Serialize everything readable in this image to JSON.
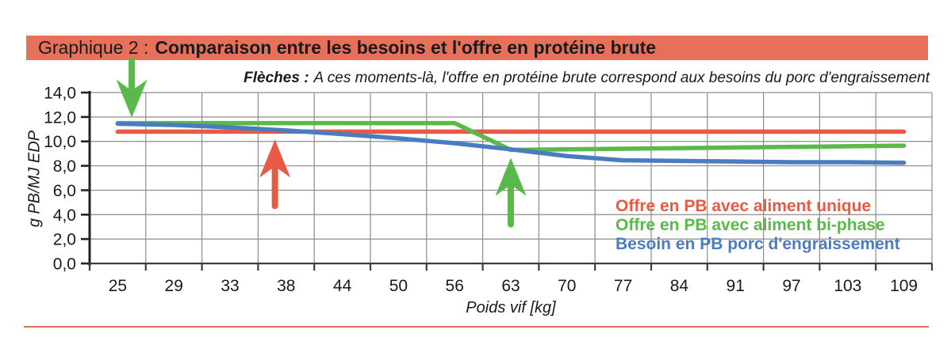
{
  "header": {
    "label": "Graphique 2 :",
    "title": "Comparaison entre les besoins et l'offre en protéine brute",
    "bar_color": "#e7705b"
  },
  "subtitle": {
    "lead": "Flèches :",
    "text": "A ces moments-là, l'offre en protéine brute correspond aux besoins du porc d'engraissement"
  },
  "chart_data": {
    "type": "line",
    "categories": [
      25,
      29,
      33,
      38,
      44,
      50,
      56,
      63,
      70,
      77,
      84,
      91,
      97,
      103,
      109
    ],
    "series": [
      {
        "name": "Offre en PB avec aliment unique",
        "color": "#e85a43",
        "values": [
          10.8,
          10.8,
          10.8,
          10.8,
          10.8,
          10.8,
          10.8,
          10.8,
          10.8,
          10.8,
          10.8,
          10.8,
          10.8,
          10.8,
          10.8
        ]
      },
      {
        "name": "Offre en PB avec aliment bi-phase",
        "color": "#5ab948",
        "values": [
          11.5,
          11.5,
          11.5,
          11.5,
          11.5,
          11.5,
          11.5,
          9.3,
          9.35,
          9.4,
          9.45,
          9.5,
          9.55,
          9.6,
          9.65
        ]
      },
      {
        "name": "Besoin en PB porc d'engraissement",
        "color": "#4a7cc0",
        "values": [
          11.45,
          11.35,
          11.15,
          10.9,
          10.6,
          10.25,
          9.85,
          9.35,
          8.8,
          8.45,
          8.4,
          8.35,
          8.3,
          8.3,
          8.25
        ]
      }
    ],
    "title": "Comparaison entre les besoins et l'offre en protéine brute",
    "xlabel": "Poids vif [kg]",
    "ylabel": "g PB/MJ EDP",
    "ylim": [
      0,
      14
    ],
    "ytick_step": 2,
    "ytick_labels": [
      "0,0",
      "2,0",
      "4,0",
      "6,0",
      "8,0",
      "10,0",
      "12,0",
      "14,0"
    ],
    "grid": true,
    "legend_position": "inside bottom-right",
    "annotations": [
      {
        "shape": "arrow",
        "direction": "down",
        "color": "#5ab948",
        "at_kg": 26,
        "at_value": 11.5
      },
      {
        "shape": "arrow",
        "direction": "up",
        "color": "#e85a43",
        "at_kg": 37,
        "at_value": 10.8
      },
      {
        "shape": "arrow",
        "direction": "up",
        "color": "#5ab948",
        "at_kg": 63,
        "at_value": 9.3
      }
    ]
  },
  "divider_color": "#e7705b"
}
